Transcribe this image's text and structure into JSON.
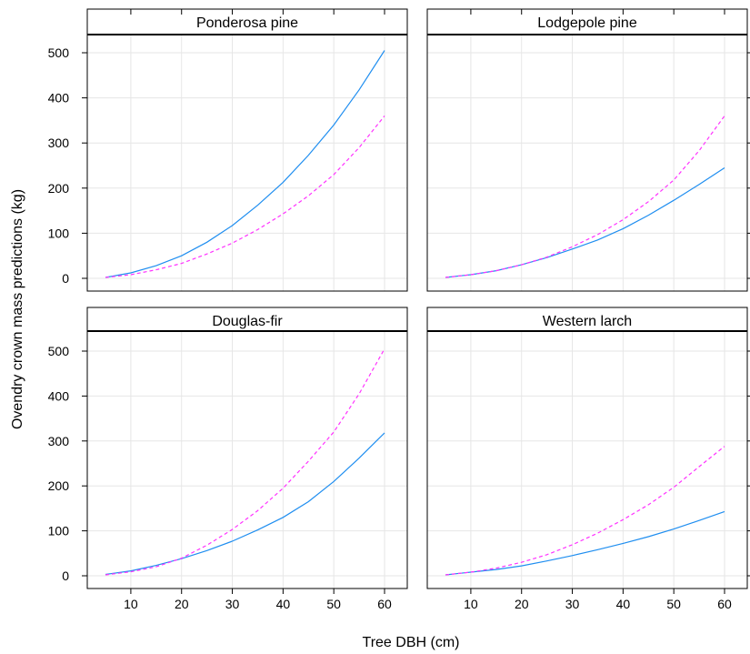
{
  "chart_data": {
    "type": "line",
    "layout": "2x2 trellis",
    "xlabel": "Tree DBH (cm)",
    "ylabel": "Ovendry crown mass predictions (kg)",
    "xlim": [
      5,
      60
    ],
    "ylim": [
      0,
      510
    ],
    "x_ticks": [
      10,
      20,
      30,
      40,
      50,
      60
    ],
    "y_ticks": [
      0,
      100,
      200,
      300,
      400,
      500
    ],
    "x_tick_labels": [
      "10",
      "20",
      "30",
      "40",
      "50",
      "60"
    ],
    "y_tick_labels": [
      "0",
      "100",
      "200",
      "300",
      "400",
      "500"
    ],
    "grid": true,
    "series_styles": [
      {
        "color": "#1f8ef0",
        "dash": "solid"
      },
      {
        "color": "#ff33ff",
        "dash": "dashed"
      }
    ],
    "panels": [
      {
        "title": "Ponderosa pine",
        "x": [
          5,
          10,
          15,
          20,
          25,
          30,
          35,
          40,
          45,
          50,
          55,
          60
        ],
        "series": [
          {
            "values": [
              2,
              12,
              28,
              50,
              80,
              117,
              162,
              213,
              273,
              340,
              418,
              505
            ]
          },
          {
            "values": [
              2,
              8,
              19,
              33,
              54,
              78,
              108,
              143,
              183,
              230,
              290,
              360
            ]
          }
        ]
      },
      {
        "title": "Lodgepole pine",
        "x": [
          5,
          10,
          15,
          20,
          25,
          30,
          35,
          40,
          45,
          50,
          55,
          60
        ],
        "series": [
          {
            "values": [
              2,
              8,
              17,
              30,
              46,
              65,
              85,
              110,
              140,
              173,
              208,
              245
            ]
          },
          {
            "values": [
              2,
              8,
              17,
              30,
              47,
              70,
              97,
              130,
              170,
              218,
              283,
              360
            ]
          }
        ]
      },
      {
        "title": "Douglas-fir",
        "x": [
          5,
          10,
          15,
          20,
          25,
          30,
          35,
          40,
          45,
          50,
          55,
          60
        ],
        "series": [
          {
            "values": [
              3,
              11,
              23,
              38,
              56,
              77,
              102,
              130,
              165,
              210,
              262,
              318
            ]
          },
          {
            "values": [
              2,
              9,
              20,
              39,
              68,
              103,
              145,
              195,
              255,
              320,
              405,
              505
            ]
          }
        ]
      },
      {
        "title": "Western larch",
        "x": [
          5,
          10,
          15,
          20,
          25,
          30,
          35,
          40,
          45,
          50,
          55,
          60
        ],
        "series": [
          {
            "values": [
              2,
              8,
              14,
              22,
              33,
              45,
              58,
              72,
              87,
              104,
              123,
              143
            ]
          },
          {
            "values": [
              2,
              8,
              17,
              30,
              47,
              69,
              95,
              125,
              158,
              197,
              243,
              288
            ]
          }
        ]
      }
    ]
  }
}
